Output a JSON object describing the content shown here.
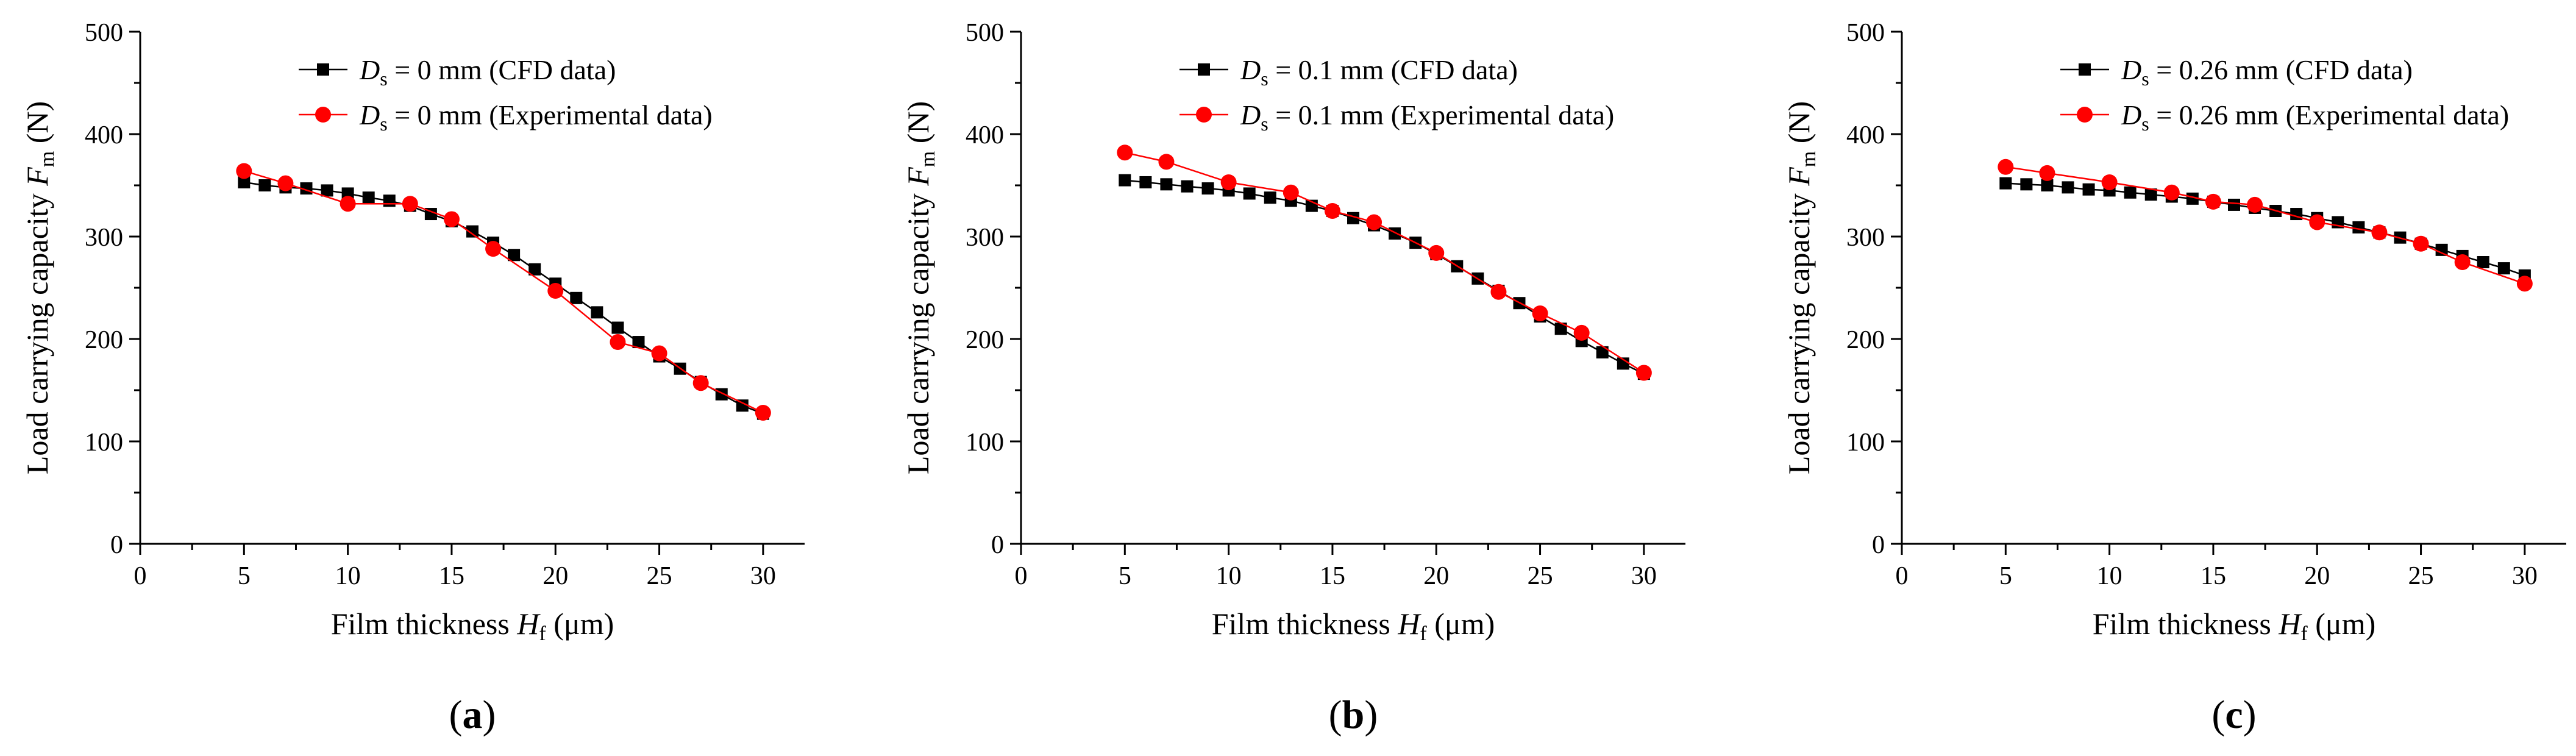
{
  "figure": {
    "chart_count": 3
  },
  "chart_data": [
    {
      "type": "line",
      "panel_label": "(a)",
      "panel_letter": "a",
      "xlabel": "Film thickness H_f (μm)",
      "xlabel_text": "Film thickness ",
      "xlabel_symbol": "H",
      "xlabel_subscript": "f",
      "xlabel_unit": " (μm)",
      "ylabel": "Load carrying capacity F_m (N)",
      "ylabel_text": "Load carrying capacity ",
      "ylabel_symbol": "F",
      "ylabel_subscript": "m",
      "ylabel_unit": " (N)",
      "xlim": [
        0,
        32
      ],
      "ylim": [
        0,
        500
      ],
      "xticks": [
        0,
        5,
        10,
        15,
        20,
        25,
        30
      ],
      "yticks": [
        0,
        100,
        200,
        300,
        400,
        500
      ],
      "legend_position": "top-center",
      "series": [
        {
          "name": "Ds = 0 mm (CFD data)",
          "legend_symbol": "D",
          "legend_subscript": "s",
          "legend_rest": " = 0 mm (CFD data)",
          "color": "#000000",
          "marker": "square",
          "x": [
            5,
            6,
            7,
            8,
            9,
            10,
            11,
            12,
            13,
            14,
            15,
            16,
            17,
            18,
            19,
            20,
            21,
            22,
            23,
            24,
            25,
            26,
            27,
            28,
            29,
            30
          ],
          "y": [
            353,
            350,
            348,
            347,
            345,
            342,
            338,
            335,
            330,
            322,
            315,
            305,
            294,
            282,
            268,
            254,
            240,
            226,
            211,
            197,
            183,
            171,
            158,
            146,
            135,
            127
          ]
        },
        {
          "name": "Ds = 0 mm (Experimental data)",
          "legend_symbol": "D",
          "legend_subscript": "s",
          "legend_rest": " = 0 mm (Experimental data)",
          "color": "#ff0000",
          "marker": "circle",
          "x": [
            5,
            7,
            10,
            13,
            15,
            17,
            20,
            23,
            25,
            27,
            30
          ],
          "y": [
            364,
            352,
            332,
            332,
            317,
            288,
            247,
            197,
            186,
            157,
            128
          ]
        }
      ]
    },
    {
      "type": "line",
      "panel_label": "(b)",
      "panel_letter": "b",
      "xlabel": "Film thickness H_f (μm)",
      "xlabel_text": "Film thickness ",
      "xlabel_symbol": "H",
      "xlabel_subscript": "f",
      "xlabel_unit": " (μm)",
      "ylabel": "Load carrying capacity F_m (N)",
      "ylabel_text": "Load carrying capacity ",
      "ylabel_symbol": "F",
      "ylabel_subscript": "m",
      "ylabel_unit": " (N)",
      "xlim": [
        0,
        32
      ],
      "ylim": [
        0,
        500
      ],
      "xticks": [
        0,
        5,
        10,
        15,
        20,
        25,
        30
      ],
      "yticks": [
        0,
        100,
        200,
        300,
        400,
        500
      ],
      "legend_position": "top-center",
      "series": [
        {
          "name": "Ds = 0.1 mm (CFD data)",
          "legend_symbol": "D",
          "legend_subscript": "s",
          "legend_rest": " = 0.1 mm (CFD data)",
          "color": "#000000",
          "marker": "square",
          "x": [
            5,
            6,
            7,
            8,
            9,
            10,
            11,
            12,
            13,
            14,
            15,
            16,
            17,
            18,
            19,
            20,
            21,
            22,
            23,
            24,
            25,
            26,
            27,
            28,
            29,
            30
          ],
          "y": [
            355,
            353,
            351,
            349,
            347,
            345,
            342,
            338,
            335,
            330,
            325,
            318,
            311,
            303,
            294,
            283,
            271,
            259,
            247,
            235,
            222,
            210,
            198,
            187,
            176,
            166
          ]
        },
        {
          "name": "Ds = 0.1 mm (Experimental data)",
          "legend_symbol": "D",
          "legend_subscript": "s",
          "legend_rest": " = 0.1 mm (Experimental data)",
          "color": "#ff0000",
          "marker": "circle",
          "x": [
            5,
            7,
            10,
            13,
            15,
            17,
            20,
            23,
            25,
            27,
            30
          ],
          "y": [
            382,
            373,
            353,
            343,
            325,
            314,
            284,
            246,
            225,
            206,
            167
          ]
        }
      ]
    },
    {
      "type": "line",
      "panel_label": "(c)",
      "panel_letter": "c",
      "xlabel": "Film thickness H_f (μm)",
      "xlabel_text": "Film thickness ",
      "xlabel_symbol": "H",
      "xlabel_subscript": "f",
      "xlabel_unit": " (μm)",
      "ylabel": "Load carrying capacity F_m (N)",
      "ylabel_text": "Load carrying capacity ",
      "ylabel_symbol": "F",
      "ylabel_subscript": "m",
      "ylabel_unit": " (N)",
      "xlim": [
        0,
        32
      ],
      "ylim": [
        0,
        500
      ],
      "xticks": [
        0,
        5,
        10,
        15,
        20,
        25,
        30
      ],
      "yticks": [
        0,
        100,
        200,
        300,
        400,
        500
      ],
      "legend_position": "top-center",
      "series": [
        {
          "name": "Ds = 0.26 mm (CFD data)",
          "legend_symbol": "D",
          "legend_subscript": "s",
          "legend_rest": " = 0.26 mm (CFD data)",
          "color": "#000000",
          "marker": "square",
          "x": [
            5,
            6,
            7,
            8,
            9,
            10,
            11,
            12,
            13,
            14,
            15,
            16,
            17,
            18,
            19,
            20,
            21,
            22,
            23,
            24,
            25,
            26,
            27,
            28,
            29,
            30
          ],
          "y": [
            352,
            351,
            350,
            348,
            346,
            345,
            343,
            341,
            339,
            337,
            334,
            331,
            328,
            325,
            322,
            318,
            314,
            309,
            304,
            299,
            293,
            287,
            281,
            275,
            269,
            262
          ]
        },
        {
          "name": "Ds = 0.26 mm (Experimental data)",
          "legend_symbol": "D",
          "legend_subscript": "s",
          "legend_rest": " = 0.26 mm (Experimental data)",
          "color": "#ff0000",
          "marker": "circle",
          "x": [
            5,
            7,
            10,
            13,
            15,
            17,
            20,
            23,
            25,
            27,
            30
          ],
          "y": [
            368,
            362,
            353,
            343,
            334,
            331,
            314,
            304,
            293,
            275,
            254
          ]
        }
      ]
    }
  ]
}
